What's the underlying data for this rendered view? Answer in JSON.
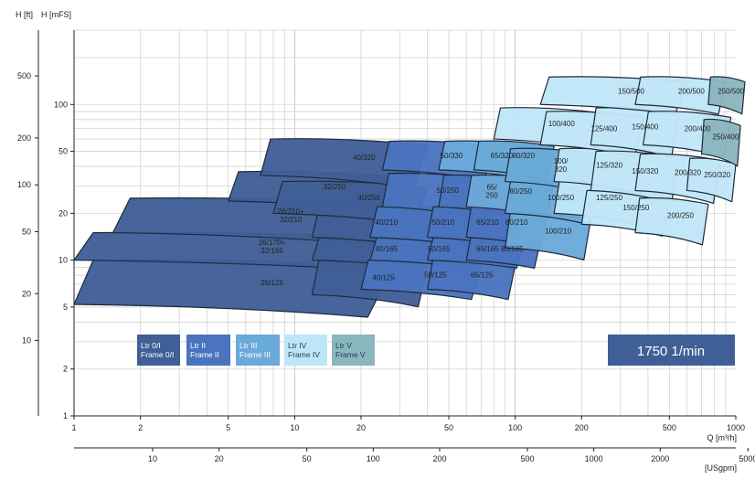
{
  "chart_data": {
    "type": "area",
    "title": "",
    "speed_label": "1750 1/min",
    "y_axis_ft_label": "H [ft]",
    "y_axis_m_label": "H [mFS]",
    "x_axis_label": "Q [m³/h]",
    "x_axis2_label": "[USgpm]",
    "x_scale": "log",
    "y_scale": "log",
    "xlim": [
      1,
      1000
    ],
    "ylim_m": [
      1,
      300
    ],
    "x_ticks": [
      {
        "v": 1,
        "label": "1"
      },
      {
        "v": 2,
        "label": "2"
      },
      {
        "v": 5,
        "label": "5"
      },
      {
        "v": 10,
        "label": "10"
      },
      {
        "v": 20,
        "label": "20"
      },
      {
        "v": 50,
        "label": "50"
      },
      {
        "v": 100,
        "label": "100"
      },
      {
        "v": 200,
        "label": "200"
      },
      {
        "v": 500,
        "label": "500"
      },
      {
        "v": 1000,
        "label": "1000"
      }
    ],
    "x2_ticks": [
      {
        "v": 10,
        "label": "10"
      },
      {
        "v": 20,
        "label": "20"
      },
      {
        "v": 50,
        "label": "50"
      },
      {
        "v": 100,
        "label": "100"
      },
      {
        "v": 200,
        "label": "200"
      },
      {
        "v": 500,
        "label": "500"
      },
      {
        "v": 1000,
        "label": "1000"
      },
      {
        "v": 2000,
        "label": "2000"
      },
      {
        "v": 5000,
        "label": "5000"
      }
    ],
    "y_ticks_m": [
      {
        "v": 1,
        "label": "1"
      },
      {
        "v": 2,
        "label": "2"
      },
      {
        "v": 5,
        "label": "5"
      },
      {
        "v": 10,
        "label": "10"
      },
      {
        "v": 20,
        "label": "20"
      },
      {
        "v": 50,
        "label": "50"
      },
      {
        "v": 100,
        "label": "100"
      }
    ],
    "y_ticks_ft": [
      {
        "v": 10,
        "label": "10"
      },
      {
        "v": 20,
        "label": "20"
      },
      {
        "v": 50,
        "label": "50"
      },
      {
        "v": 100,
        "label": "100"
      },
      {
        "v": 200,
        "label": "200"
      },
      {
        "v": 500,
        "label": "500"
      }
    ],
    "legend": [
      {
        "label_1": "Ltr 0/I",
        "label_2": "Frame 0/I",
        "color": "#3f5f96"
      },
      {
        "label_1": "Ltr II",
        "label_2": "Frame II",
        "color": "#4a74be"
      },
      {
        "label_1": "Ltr III",
        "label_2": "Frame III",
        "color": "#6aaad8"
      },
      {
        "label_1": "Ltr IV",
        "label_2": "Frame IV",
        "color": "#bfe6f8"
      },
      {
        "label_1": "Ltr V",
        "label_2": "Frame V",
        "color": "#8ab6be"
      }
    ],
    "regions": [
      {
        "name": "26/125",
        "frame": 0,
        "q": [
          1,
          28
        ],
        "h": [
          5.2,
          10
        ]
      },
      {
        "name": "26/170+\n32/165",
        "frame": 0,
        "q": [
          1,
          28
        ],
        "h": [
          10,
          15
        ]
      },
      {
        "name": "26/210+\n32/210",
        "frame": 0,
        "q": [
          1.5,
          30
        ],
        "h": [
          15,
          25
        ]
      },
      {
        "name": "40/125",
        "frame": 0,
        "q": [
          12,
          40
        ],
        "h": [
          6,
          10
        ]
      },
      {
        "name": "40/165",
        "frame": 0,
        "q": [
          12,
          42
        ],
        "h": [
          10,
          14
        ]
      },
      {
        "name": "40/210",
        "frame": 0,
        "q": [
          12,
          42
        ],
        "h": [
          14,
          22
        ]
      },
      {
        "name": "32/250",
        "frame": 0,
        "q": [
          5,
          30
        ],
        "h": [
          24,
          37
        ]
      },
      {
        "name": "40/250",
        "frame": 0,
        "q": [
          8,
          40
        ],
        "h": [
          20,
          32
        ]
      },
      {
        "name": "40/320",
        "frame": 0,
        "q": [
          7,
          40
        ],
        "h": [
          35,
          60
        ]
      },
      {
        "name": "50/125",
        "frame": 1,
        "q": [
          20,
          70
        ],
        "h": [
          6.5,
          10
        ]
      },
      {
        "name": "50/165",
        "frame": 1,
        "q": [
          22,
          70
        ],
        "h": [
          10,
          14
        ]
      },
      {
        "name": "50/210",
        "frame": 1,
        "q": [
          22,
          75
        ],
        "h": [
          14,
          22
        ]
      },
      {
        "name": "50/250",
        "frame": 1,
        "q": [
          25,
          75
        ],
        "h": [
          22,
          36
        ]
      },
      {
        "name": "50/330",
        "frame": 1,
        "q": [
          25,
          80
        ],
        "h": [
          38,
          58
        ]
      },
      {
        "name": "65/125",
        "frame": 1,
        "q": [
          40,
          100
        ],
        "h": [
          6.5,
          10
        ]
      },
      {
        "name": "65/165",
        "frame": 1,
        "q": [
          40,
          110
        ],
        "h": [
          10,
          14
        ]
      },
      {
        "name": "65/210",
        "frame": 1,
        "q": [
          40,
          110
        ],
        "h": [
          14,
          22
        ]
      },
      {
        "name": "65/\n250",
        "frame": 1,
        "q": [
          45,
          110
        ],
        "h": [
          22,
          35
        ]
      },
      {
        "name": "65/320",
        "frame": 2,
        "q": [
          45,
          130
        ],
        "h": [
          38,
          58
        ]
      },
      {
        "name": "80/165",
        "frame": 1,
        "q": [
          60,
          130
        ],
        "h": [
          10,
          14
        ]
      },
      {
        "name": "80/210",
        "frame": 1,
        "q": [
          60,
          140
        ],
        "h": [
          14,
          22
        ]
      },
      {
        "name": "80/250",
        "frame": 2,
        "q": [
          60,
          150
        ],
        "h": [
          22,
          35
        ]
      },
      {
        "name": "80/320",
        "frame": 2,
        "q": [
          65,
          150
        ],
        "h": [
          38,
          58
        ]
      },
      {
        "name": "100/210",
        "frame": 2,
        "q": [
          90,
          220
        ],
        "h": [
          12,
          20
        ]
      },
      {
        "name": "100/250",
        "frame": 2,
        "q": [
          90,
          230
        ],
        "h": [
          20,
          32
        ]
      },
      {
        "name": "100/\n320",
        "frame": 2,
        "q": [
          90,
          230
        ],
        "h": [
          32,
          52
        ]
      },
      {
        "name": "100/400",
        "frame": 3,
        "q": [
          80,
          250
        ],
        "h": [
          60,
          95
        ]
      },
      {
        "name": "125/250",
        "frame": 3,
        "q": [
          150,
          380
        ],
        "h": [
          20,
          32
        ]
      },
      {
        "name": "125/320",
        "frame": 3,
        "q": [
          150,
          380
        ],
        "h": [
          32,
          52
        ]
      },
      {
        "name": "125/400",
        "frame": 3,
        "q": [
          130,
          380
        ],
        "h": [
          55,
          90
        ]
      },
      {
        "name": "150/250",
        "frame": 3,
        "q": [
          200,
          500
        ],
        "h": [
          17,
          28
        ]
      },
      {
        "name": "150/320",
        "frame": 3,
        "q": [
          220,
          550
        ],
        "h": [
          28,
          50
        ]
      },
      {
        "name": "150/400",
        "frame": 3,
        "q": [
          220,
          550
        ],
        "h": [
          55,
          95
        ]
      },
      {
        "name": "150/500",
        "frame": 3,
        "q": [
          130,
          600
        ],
        "h": [
          100,
          150
        ]
      },
      {
        "name": "200/250",
        "frame": 3,
        "q": [
          350,
          750
        ],
        "h": [
          15,
          25
        ]
      },
      {
        "name": "200/320",
        "frame": 3,
        "q": [
          350,
          850
        ],
        "h": [
          28,
          48
        ]
      },
      {
        "name": "200/400",
        "frame": 3,
        "q": [
          380,
          950
        ],
        "h": [
          55,
          90
        ]
      },
      {
        "name": "200/500",
        "frame": 3,
        "q": [
          350,
          900
        ],
        "h": [
          100,
          150
        ]
      },
      {
        "name": "250/320",
        "frame": 3,
        "q": [
          600,
          1000
        ],
        "h": [
          28,
          45
        ]
      },
      {
        "name": "250/400",
        "frame": 4,
        "q": [
          700,
          1050
        ],
        "h": [
          48,
          80
        ]
      },
      {
        "name": "250/500",
        "frame": 4,
        "q": [
          750,
          1100
        ],
        "h": [
          100,
          150
        ]
      }
    ]
  }
}
